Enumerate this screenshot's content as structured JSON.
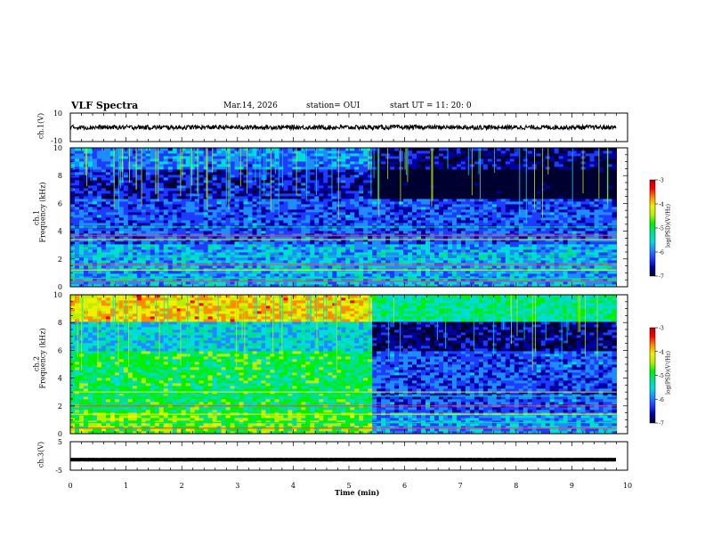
{
  "header": {
    "title": "VLF Spectra",
    "date": "Mar.14, 2026",
    "station": "station= OUI",
    "start": "start  UT =    11: 20: 0"
  },
  "colors": {
    "scale": [
      "#000030",
      "#0000a0",
      "#1e3cff",
      "#1e8cff",
      "#00dcdc",
      "#00e08c",
      "#00f000",
      "#b4f000",
      "#f0f000",
      "#ff8c00",
      "#ff0000",
      "#b40000"
    ],
    "trace": "#000000"
  },
  "chart_data": [
    {
      "type": "line",
      "panel": "ch1",
      "ylabel": "ch.1(V)",
      "ylim": [
        -10,
        10
      ],
      "yticks": [
        "10",
        "-10"
      ],
      "trace_mean": 0,
      "trace_amplitude": 1.6
    },
    {
      "type": "heatmap",
      "panel": "ch1-spectrum",
      "ylabel_top": "ch.1",
      "ylabel": "Frequency (kHz)",
      "ylim": [
        0,
        10
      ],
      "yticks": [
        "0",
        "2",
        "4",
        "6",
        "8",
        "10"
      ],
      "colorbar": {
        "label": "log(PSD)(V²/Hz)",
        "range": [
          -7,
          -3
        ],
        "ticks": [
          "-3",
          "-4",
          "-5",
          "-6",
          "-7"
        ]
      },
      "background_level": -6.1,
      "regime_change_min": 5.4,
      "bands_khz": [
        0.4,
        0.6,
        1.2,
        1.6,
        2.2,
        3.4,
        3.7,
        4.3
      ]
    },
    {
      "type": "heatmap",
      "panel": "ch2-spectrum",
      "ylabel_top": "ch.2",
      "ylabel": "Frequency (kHz)",
      "ylim": [
        0,
        10
      ],
      "yticks": [
        "0",
        "2",
        "4",
        "6",
        "8",
        "10"
      ],
      "colorbar": {
        "label": "log(PSD)(V²/Hz)",
        "range": [
          -7,
          -3
        ],
        "ticks": [
          "-3",
          "-4",
          "-5",
          "-6",
          "-7"
        ]
      },
      "background_level": -5.0,
      "regime_change_min": 5.4,
      "bands_khz": [
        0.4,
        0.8,
        1.4,
        2.0,
        2.7,
        3.0
      ]
    },
    {
      "type": "line",
      "panel": "ch3",
      "ylabel": "ch.3(V)",
      "ylim": [
        -5,
        5
      ],
      "yticks": [
        "5",
        "-5"
      ],
      "trace_mean": -1.3,
      "trace_amplitude": 0.15
    }
  ],
  "xaxis": {
    "label": "Time  (min)",
    "range": [
      0,
      10
    ],
    "ticks": [
      "0",
      "1",
      "2",
      "3",
      "4",
      "5",
      "6",
      "7",
      "8",
      "9",
      "10"
    ],
    "data_end_min": 9.8
  }
}
